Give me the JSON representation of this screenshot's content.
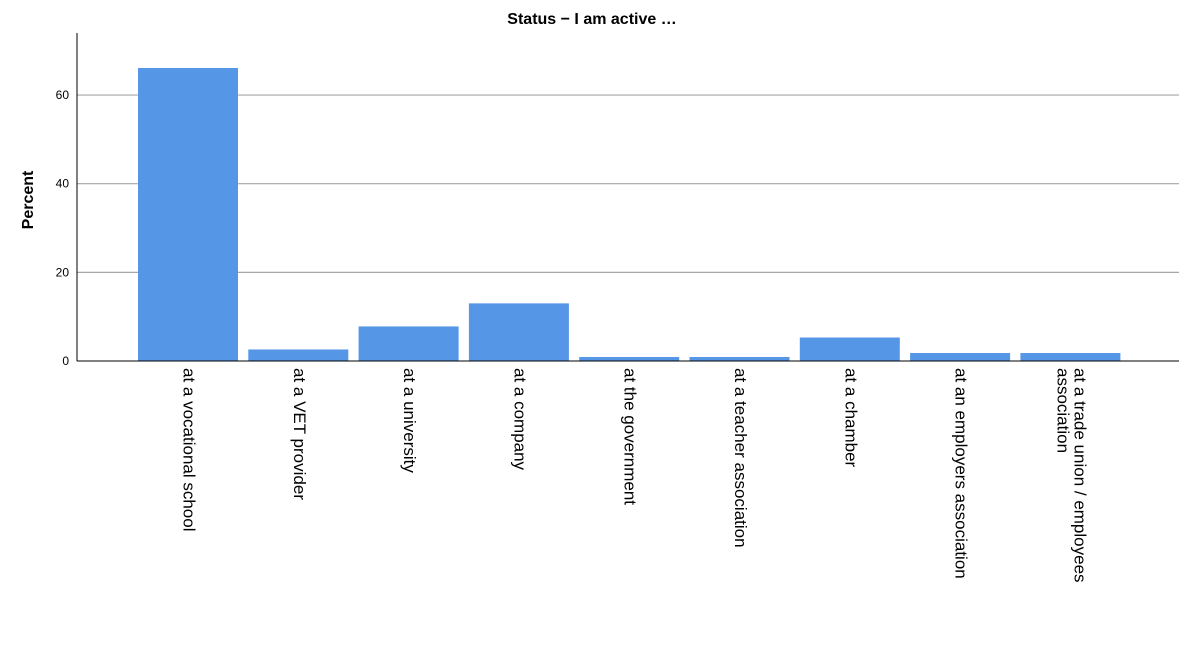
{
  "chart_data": {
    "type": "bar",
    "title": "Status − I am active …",
    "xlabel": "",
    "ylabel": "Percent",
    "ylim": [
      0,
      74
    ],
    "yticks": [
      0,
      20,
      40,
      60
    ],
    "grid": true,
    "bar_color": "#5597e6",
    "grid_color": "#a6a6a6",
    "categories": [
      [
        "at a vocational school"
      ],
      [
        "at a VET provider"
      ],
      [
        "at a university"
      ],
      [
        "at a company"
      ],
      [
        "at the government"
      ],
      [
        "at a teacher association"
      ],
      [
        "at a chamber"
      ],
      [
        "at an employers association"
      ],
      [
        "at a trade union / employees",
        "association"
      ]
    ],
    "values": [
      66.1,
      2.6,
      7.8,
      13.0,
      0.9,
      0.9,
      5.3,
      1.8,
      1.8
    ]
  }
}
